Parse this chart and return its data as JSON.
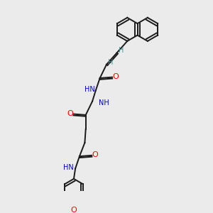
{
  "background_color": "#ebebeb",
  "bond_color": "#1a1a1a",
  "N_color": "#0000cd",
  "O_color": "#ff0000",
  "H_color": "#4a9090",
  "figsize": [
    3.0,
    3.0
  ],
  "dpi": 100,
  "xlim": [
    0,
    10
  ],
  "ylim": [
    0,
    10
  ]
}
